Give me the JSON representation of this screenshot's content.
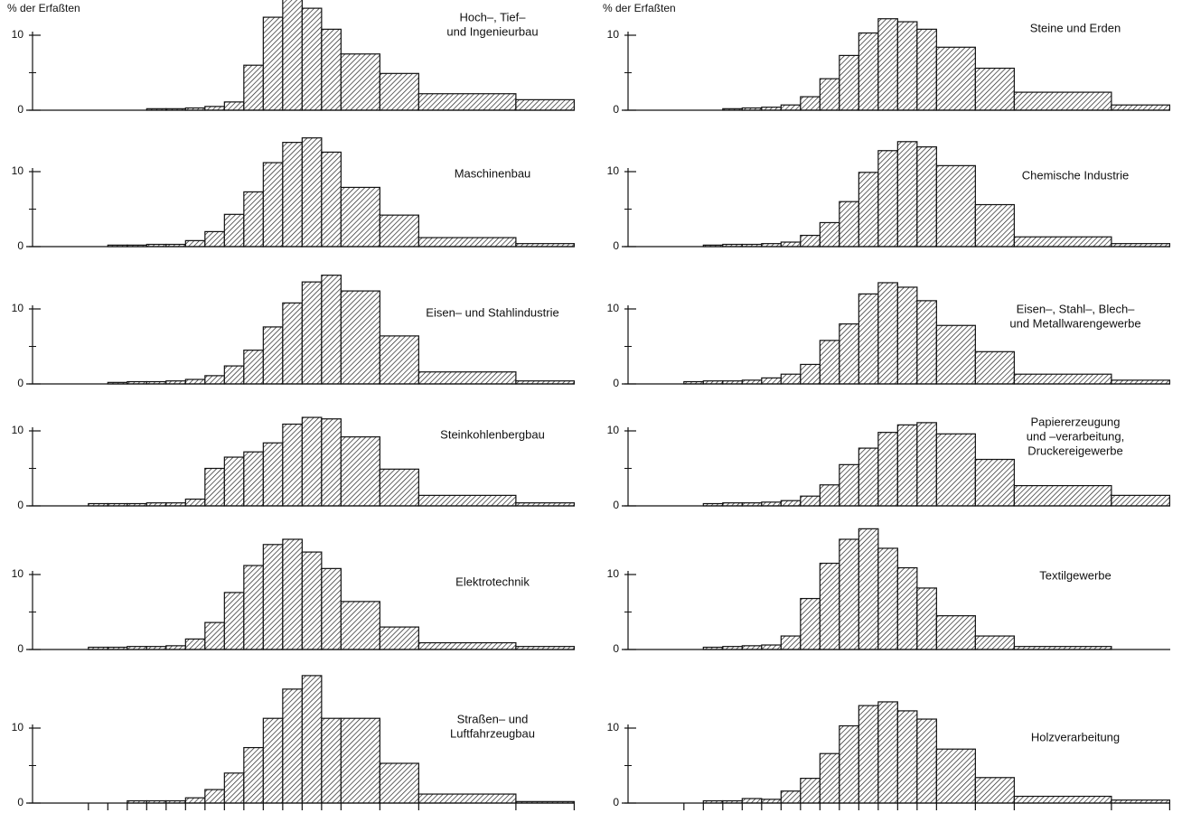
{
  "chart_data": [
    {
      "type": "histogram",
      "ylabel": "% der Erfaßten",
      "title": [
        "Hoch–, Tief–",
        "und Ingenieurbau"
      ],
      "bins": [
        0,
        2,
        3,
        4,
        5,
        6,
        7,
        8,
        9,
        10,
        11,
        12,
        13,
        14,
        15,
        17,
        19,
        24,
        27
      ],
      "values": [
        0,
        0,
        0,
        0,
        0.2,
        0.2,
        0.3,
        0.5,
        1.1,
        6.0,
        12.4,
        14.8,
        13.6,
        10.8,
        7.5,
        4.9,
        2.2,
        1.4
      ],
      "xlim": [
        -1.2,
        27.4
      ],
      "ylim": [
        0,
        18
      ],
      "yticks": [
        0,
        10
      ],
      "yticks_minor": [
        5
      ],
      "color": "#111111"
    },
    {
      "type": "histogram",
      "ylabel": "% der Erfaßten",
      "title": [
        "Steine und Erden"
      ],
      "bins": [
        0,
        2,
        3,
        4,
        5,
        6,
        7,
        8,
        9,
        10,
        11,
        12,
        13,
        14,
        15,
        17,
        19,
        24,
        27
      ],
      "values": [
        0,
        0,
        0,
        0.2,
        0.3,
        0.4,
        0.7,
        1.8,
        4.2,
        7.3,
        10.3,
        12.2,
        11.8,
        10.8,
        8.4,
        5.6,
        2.4,
        0.7
      ],
      "xlim": [
        -1.2,
        27.4
      ],
      "ylim": [
        0,
        18
      ],
      "yticks": [
        0,
        10
      ],
      "yticks_minor": [
        5
      ],
      "color": "#111111"
    },
    {
      "type": "histogram",
      "title": [
        "Maschinenbau"
      ],
      "bins": [
        0,
        2,
        3,
        4,
        5,
        6,
        7,
        8,
        9,
        10,
        11,
        12,
        13,
        14,
        15,
        17,
        19,
        24,
        27
      ],
      "values": [
        0,
        0,
        0.2,
        0.2,
        0.3,
        0.3,
        0.8,
        2.0,
        4.3,
        7.3,
        11.2,
        13.9,
        14.5,
        12.6,
        7.9,
        4.2,
        1.2,
        0.4
      ],
      "xlim": [
        -1.2,
        27.4
      ],
      "ylim": [
        0,
        18
      ],
      "yticks": [
        0,
        10
      ],
      "yticks_minor": [
        5
      ],
      "color": "#111111"
    },
    {
      "type": "histogram",
      "title": [
        "Chemische Industrie"
      ],
      "bins": [
        0,
        2,
        3,
        4,
        5,
        6,
        7,
        8,
        9,
        10,
        11,
        12,
        13,
        14,
        15,
        17,
        19,
        24,
        27
      ],
      "values": [
        0,
        0,
        0.2,
        0.3,
        0.3,
        0.4,
        0.6,
        1.5,
        3.2,
        6.0,
        9.9,
        12.8,
        14.0,
        13.3,
        10.8,
        5.6,
        1.3,
        0.4
      ],
      "xlim": [
        -1.2,
        27.4
      ],
      "ylim": [
        0,
        18
      ],
      "yticks": [
        0,
        10
      ],
      "yticks_minor": [
        5
      ],
      "color": "#111111"
    },
    {
      "type": "histogram",
      "title": [
        "Eisen– und Stahlindustrie"
      ],
      "bins": [
        0,
        2,
        3,
        4,
        5,
        6,
        7,
        8,
        9,
        10,
        11,
        12,
        13,
        14,
        15,
        17,
        19,
        24,
        27
      ],
      "values": [
        0,
        0,
        0.2,
        0.3,
        0.3,
        0.4,
        0.6,
        1.1,
        2.4,
        4.5,
        7.6,
        10.8,
        13.6,
        14.5,
        12.4,
        6.4,
        1.6,
        0.4
      ],
      "xlim": [
        -1.2,
        27.4
      ],
      "ylim": [
        0,
        18
      ],
      "yticks": [
        0,
        10
      ],
      "yticks_minor": [
        5
      ],
      "color": "#111111"
    },
    {
      "type": "histogram",
      "title": [
        "Eisen–, Stahl–, Blech–",
        "und Metallwarengewerbe"
      ],
      "bins": [
        0,
        2,
        3,
        4,
        5,
        6,
        7,
        8,
        9,
        10,
        11,
        12,
        13,
        14,
        15,
        17,
        19,
        24,
        27
      ],
      "values": [
        0,
        0.3,
        0.4,
        0.4,
        0.5,
        0.8,
        1.3,
        2.6,
        5.8,
        8.0,
        12.0,
        13.5,
        12.9,
        11.1,
        7.8,
        4.3,
        1.3,
        0.5
      ],
      "xlim": [
        -1.2,
        27.4
      ],
      "ylim": [
        0,
        18
      ],
      "yticks": [
        0,
        10
      ],
      "yticks_minor": [
        5
      ],
      "color": "#111111"
    },
    {
      "type": "histogram",
      "title": [
        "Steinkohlenbergbau"
      ],
      "bins": [
        0,
        2,
        3,
        4,
        5,
        6,
        7,
        8,
        9,
        10,
        11,
        12,
        13,
        14,
        15,
        17,
        19,
        24,
        27
      ],
      "values": [
        0,
        0.3,
        0.3,
        0.3,
        0.4,
        0.4,
        0.9,
        5.0,
        6.5,
        7.2,
        8.4,
        10.9,
        11.8,
        11.6,
        9.2,
        4.9,
        1.4,
        0.4
      ],
      "xlim": [
        -1.2,
        27.4
      ],
      "ylim": [
        0,
        18
      ],
      "yticks": [
        0,
        10
      ],
      "yticks_minor": [
        5
      ],
      "color": "#111111"
    },
    {
      "type": "histogram",
      "title": [
        "Papiererzeugung",
        "und –verarbeitung,",
        "Druckereigewerbe"
      ],
      "bins": [
        0,
        2,
        3,
        4,
        5,
        6,
        7,
        8,
        9,
        10,
        11,
        12,
        13,
        14,
        15,
        17,
        19,
        24,
        27
      ],
      "values": [
        0,
        0,
        0.3,
        0.4,
        0.4,
        0.5,
        0.7,
        1.3,
        2.8,
        5.5,
        7.7,
        9.8,
        10.8,
        11.1,
        9.6,
        6.2,
        2.7,
        1.4
      ],
      "xlim": [
        -1.2,
        27.4
      ],
      "ylim": [
        0,
        18
      ],
      "yticks": [
        0,
        10
      ],
      "yticks_minor": [
        5
      ],
      "color": "#111111"
    },
    {
      "type": "histogram",
      "title": [
        "Elektrotechnik"
      ],
      "bins": [
        0,
        2,
        3,
        4,
        5,
        6,
        7,
        8,
        9,
        10,
        11,
        12,
        13,
        14,
        15,
        17,
        19,
        24,
        27
      ],
      "values": [
        0,
        0.3,
        0.3,
        0.4,
        0.4,
        0.5,
        1.4,
        3.6,
        7.6,
        11.2,
        14.0,
        14.7,
        13.0,
        10.8,
        6.4,
        3.0,
        0.9,
        0.4
      ],
      "xlim": [
        -1.2,
        27.4
      ],
      "ylim": [
        0,
        18
      ],
      "yticks": [
        0,
        10
      ],
      "yticks_minor": [
        5
      ],
      "color": "#111111"
    },
    {
      "type": "histogram",
      "title": [
        "Textilgewerbe"
      ],
      "bins": [
        0,
        2,
        3,
        4,
        5,
        6,
        7,
        8,
        9,
        10,
        11,
        12,
        13,
        14,
        15,
        17,
        19,
        24,
        27
      ],
      "values": [
        0,
        0,
        0.3,
        0.4,
        0.5,
        0.6,
        1.8,
        6.8,
        11.5,
        14.7,
        16.1,
        13.5,
        10.9,
        8.2,
        4.5,
        1.8,
        0.4,
        0
      ],
      "xlim": [
        -1.2,
        27.4
      ],
      "ylim": [
        0,
        18
      ],
      "yticks": [
        0,
        10
      ],
      "yticks_minor": [
        5
      ],
      "color": "#111111"
    },
    {
      "type": "histogram",
      "title": [
        "Straßen– und",
        "Luftfahrzeugbau"
      ],
      "bins": [
        0,
        2,
        3,
        4,
        5,
        6,
        7,
        8,
        9,
        10,
        11,
        12,
        13,
        14,
        15,
        17,
        19,
        24,
        27
      ],
      "values": [
        0,
        0,
        0,
        0.3,
        0.3,
        0.3,
        0.7,
        1.8,
        4.0,
        7.4,
        11.3,
        15.2,
        17.0,
        11.3,
        11.3,
        5.3,
        1.2,
        0.2
      ],
      "xlim": [
        -1.2,
        27.4
      ],
      "ylim": [
        0,
        18
      ],
      "yticks": [
        0,
        10
      ],
      "yticks_minor": [
        5
      ],
      "color": "#111111"
    },
    {
      "type": "histogram",
      "title": [
        "Holzverarbeitung"
      ],
      "bins": [
        0,
        2,
        3,
        4,
        5,
        6,
        7,
        8,
        9,
        10,
        11,
        12,
        13,
        14,
        15,
        17,
        19,
        24,
        27
      ],
      "values": [
        0,
        0,
        0.3,
        0.3,
        0.6,
        0.5,
        1.6,
        3.3,
        6.6,
        10.3,
        13.0,
        13.5,
        12.3,
        11.2,
        7.2,
        3.4,
        0.9,
        0.4
      ],
      "xlim": [
        -1.2,
        27.4
      ],
      "ylim": [
        0,
        18
      ],
      "yticks": [
        0,
        10
      ],
      "yticks_minor": [
        5
      ],
      "color": "#111111"
    }
  ]
}
